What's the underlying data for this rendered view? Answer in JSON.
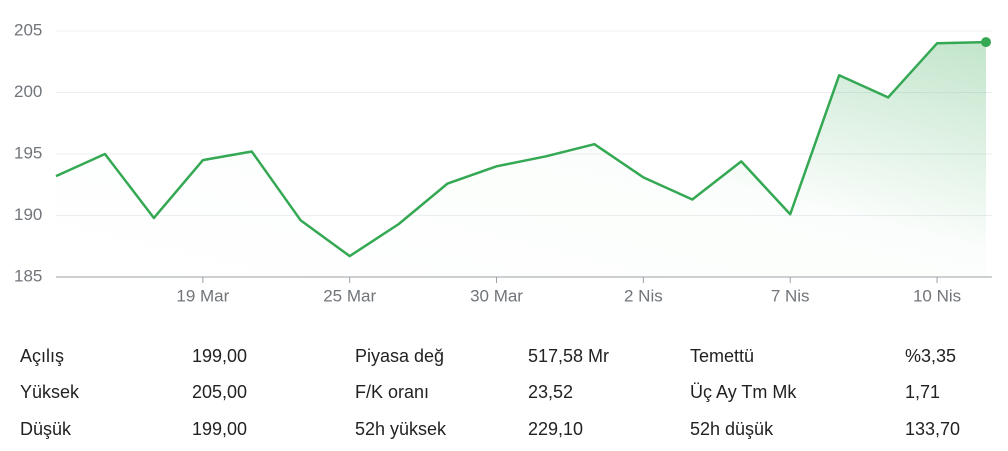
{
  "chart_data": {
    "type": "line",
    "categories": [
      null,
      null,
      null,
      "19 Mar",
      null,
      null,
      "25 Mar",
      null,
      null,
      "30 Mar",
      null,
      null,
      "2 Nis",
      null,
      null,
      "7 Nis",
      null,
      null,
      "10 Nis",
      null
    ],
    "series": [
      {
        "color": "#34a853",
        "values": [
          193.2,
          195.0,
          189.8,
          194.5,
          195.2,
          189.6,
          186.7,
          189.3,
          192.6,
          194.0,
          194.8,
          195.8,
          193.1,
          191.3,
          194.4,
          190.1,
          201.4,
          199.6,
          204.0,
          204.1
        ]
      }
    ],
    "ylim": [
      185,
      205
    ],
    "yticks": [
      185,
      190,
      195,
      200,
      205
    ],
    "grid": true
  },
  "stats": [
    {
      "label": "Açılış",
      "value": "199,00"
    },
    {
      "label": "Yüksek",
      "value": "205,00"
    },
    {
      "label": "Düşük",
      "value": "199,00"
    },
    {
      "label": "Piyasa değ",
      "value": "517,58 Mr"
    },
    {
      "label": "F/K oranı",
      "value": "23,52"
    },
    {
      "label": "52h yüksek",
      "value": "229,10"
    },
    {
      "label": "Temettü",
      "value": "%3,35"
    },
    {
      "label": "Üç Ay Tm Mk",
      "value": "1,71"
    },
    {
      "label": "52h düşük",
      "value": "133,70"
    }
  ]
}
